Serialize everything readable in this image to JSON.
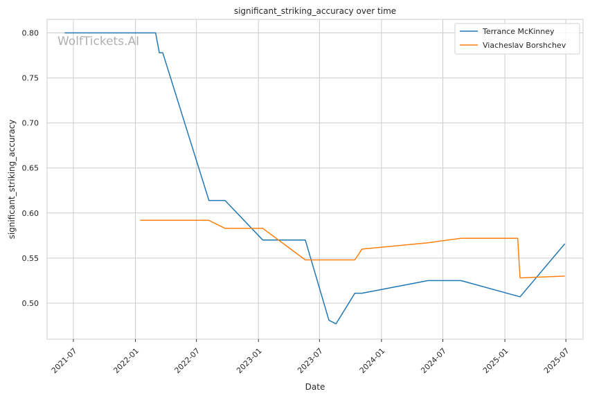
{
  "watermark": "WolfTickets.AI",
  "chart_data": {
    "type": "line",
    "title": "significant_striking_accuracy over time",
    "xlabel": "Date",
    "ylabel": "significant_striking_accuracy",
    "xlim": [
      "2021-04-14",
      "2025-08-21"
    ],
    "ylim": [
      0.46,
      0.815
    ],
    "x_ticks": [
      "2021-07",
      "2022-01",
      "2022-07",
      "2023-01",
      "2023-07",
      "2024-01",
      "2024-07",
      "2025-01",
      "2025-07"
    ],
    "y_ticks": [
      0.5,
      0.55,
      0.6,
      0.65,
      0.7,
      0.75,
      0.8
    ],
    "grid": true,
    "legend_position": "top-right",
    "series": [
      {
        "name": "Terrance McKinney",
        "color": "#1f77b4",
        "points": [
          [
            "2021-06-05",
            0.8
          ],
          [
            "2022-03-02",
            0.8
          ],
          [
            "2022-03-13",
            0.778
          ],
          [
            "2022-03-23",
            0.778
          ],
          [
            "2022-08-07",
            0.614
          ],
          [
            "2022-09-24",
            0.614
          ],
          [
            "2023-01-14",
            0.57
          ],
          [
            "2023-05-20",
            0.57
          ],
          [
            "2023-07-29",
            0.481
          ],
          [
            "2023-08-19",
            0.477
          ],
          [
            "2023-10-14",
            0.511
          ],
          [
            "2023-11-04",
            0.511
          ],
          [
            "2024-05-18",
            0.525
          ],
          [
            "2024-08-24",
            0.525
          ],
          [
            "2025-02-15",
            0.507
          ],
          [
            "2025-06-28",
            0.566
          ]
        ]
      },
      {
        "name": "Viacheslav Borshchev",
        "color": "#ff7f0e",
        "points": [
          [
            "2022-01-15",
            0.592
          ],
          [
            "2022-08-06",
            0.592
          ],
          [
            "2022-09-24",
            0.583
          ],
          [
            "2023-01-14",
            0.583
          ],
          [
            "2023-05-20",
            0.548
          ],
          [
            "2023-10-14",
            0.548
          ],
          [
            "2023-11-04",
            0.56
          ],
          [
            "2024-05-18",
            0.567
          ],
          [
            "2024-08-24",
            0.572
          ],
          [
            "2025-02-08",
            0.572
          ],
          [
            "2025-02-15",
            0.528
          ],
          [
            "2025-06-28",
            0.53
          ]
        ]
      }
    ]
  }
}
